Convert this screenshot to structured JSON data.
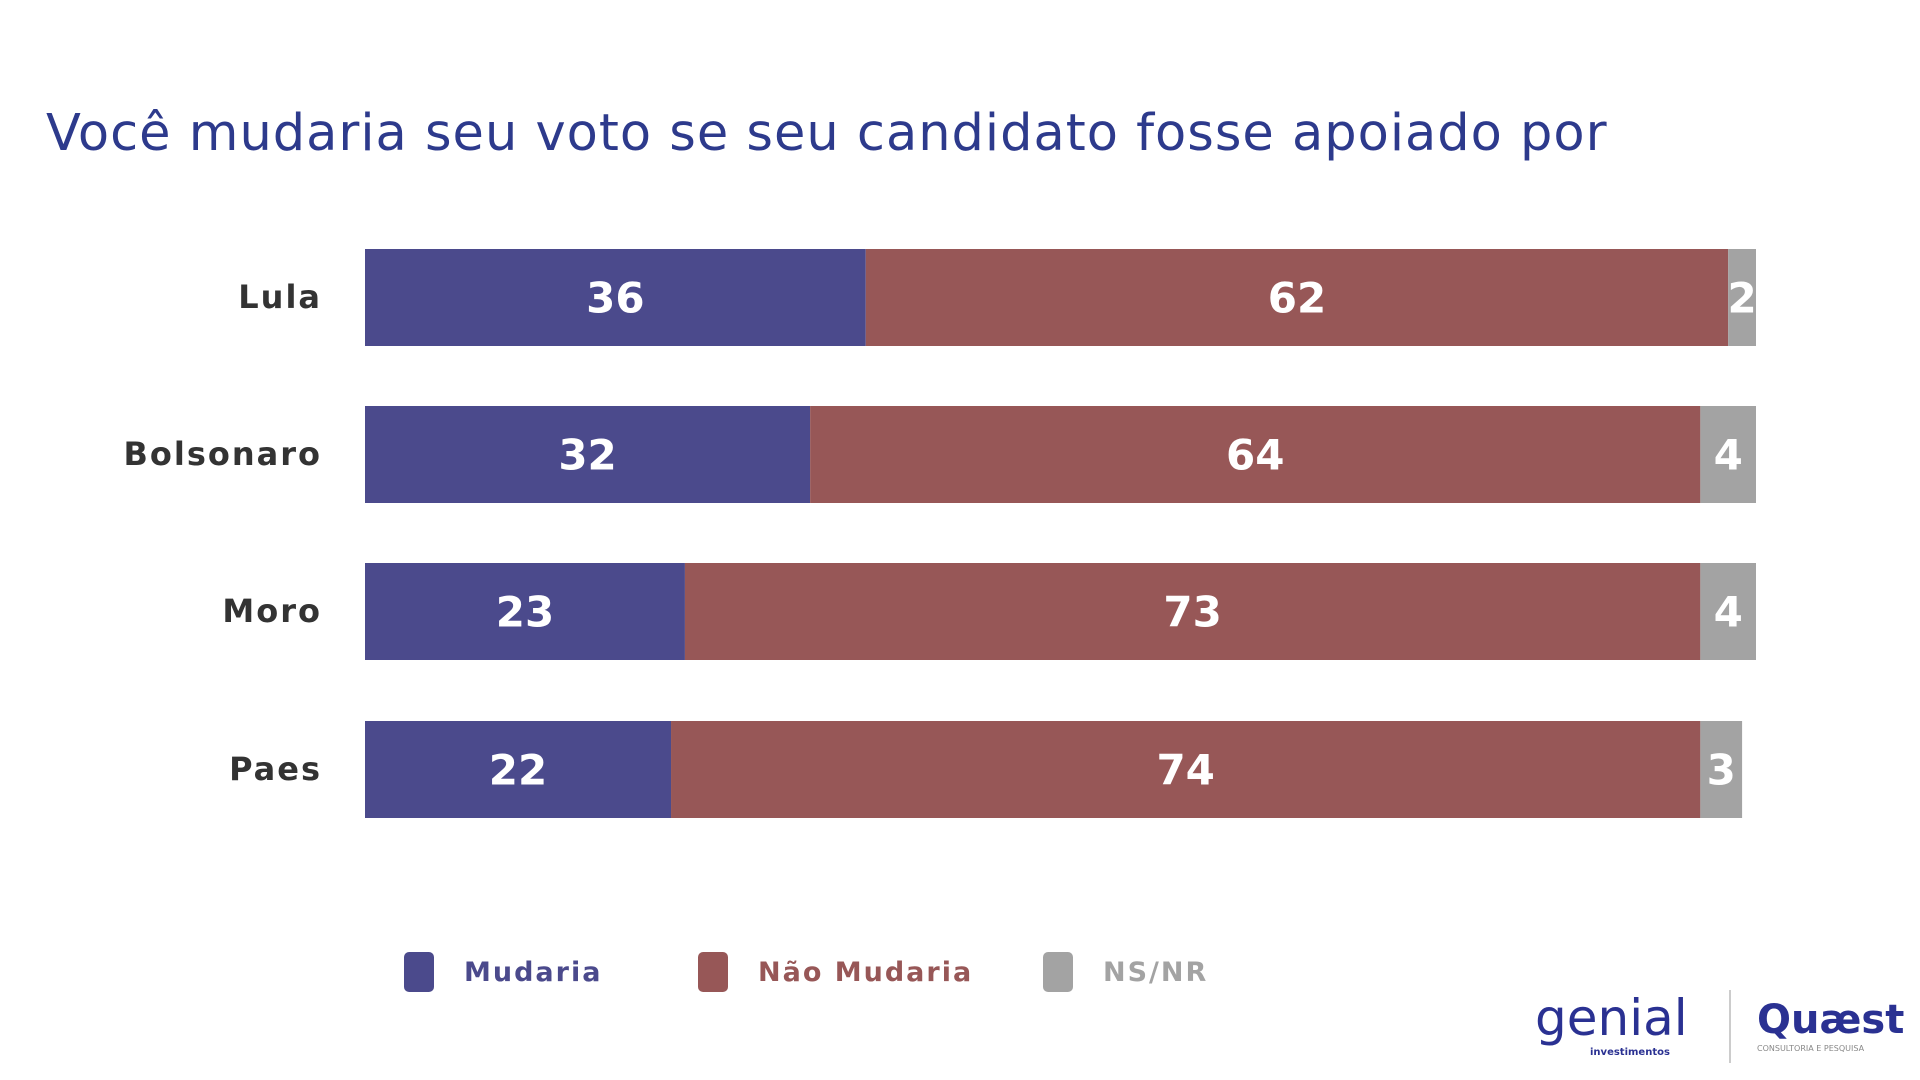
{
  "chart_data": {
    "type": "bar",
    "orientation": "horizontal",
    "stacked": true,
    "title": "Você mudaria seu voto se seu candidato fosse apoiado por",
    "categories": [
      "Lula",
      "Bolsonaro",
      "Moro",
      "Paes"
    ],
    "series": [
      {
        "name": "Mudaria",
        "color": "#4b4a8c",
        "values": [
          36,
          32,
          23,
          22
        ]
      },
      {
        "name": "Não Mudaria",
        "color": "#975757",
        "values": [
          62,
          64,
          73,
          74
        ]
      },
      {
        "name": "NS/NR",
        "color": "#a3a3a3",
        "values": [
          2,
          4,
          4,
          3
        ]
      }
    ],
    "xlim": [
      0,
      100
    ],
    "grid": false,
    "legend_position": "bottom"
  },
  "logos": {
    "left": "genial investimentos",
    "right": "Quaest consultoria e pesquisa"
  }
}
